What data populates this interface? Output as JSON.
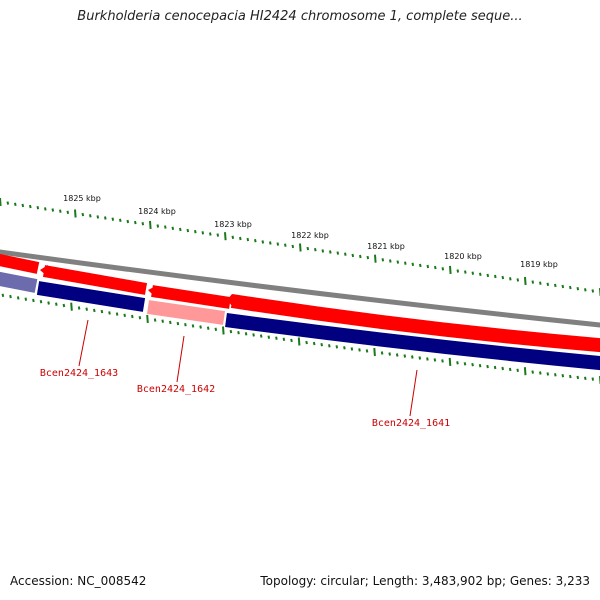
{
  "title": "Burkholderia cenocepacia HI2424 chromosome 1, complete seque...",
  "accession": "Accession: NC_008542",
  "topology": "Topology: circular; Length: 3,483,902 bp; Genes: 3,233",
  "scale_labels": [
    "1825 kbp",
    "1824 kbp",
    "1823 kbp",
    "1822 kbp",
    "1821 kbp",
    "1820 kbp",
    "1819 kbp"
  ],
  "genes": [
    {
      "name": "Bcen2424_1643"
    },
    {
      "name": "Bcen2424_1642"
    },
    {
      "name": "Bcen2424_1641"
    }
  ],
  "colors": {
    "backbone": "#808080",
    "cds_forward": "#ff0000",
    "cds_reverse": "#000080",
    "highlight_forward": "#ff9999",
    "highlight_reverse": "#6b6bad",
    "tick": "#1a7a1a",
    "gene_label": "#cc0000"
  }
}
